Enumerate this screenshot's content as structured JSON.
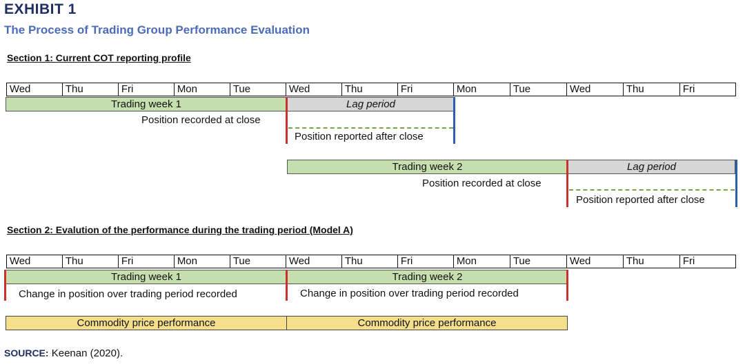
{
  "exhibit": {
    "label": "EXHIBIT 1",
    "title": "The Process of Trading Group Performance Evaluation"
  },
  "days": [
    "Wed",
    "Thu",
    "Fri",
    "Mon",
    "Tue",
    "Wed",
    "Thu",
    "Fri",
    "Mon",
    "Tue",
    "Wed",
    "Thu",
    "Fri"
  ],
  "section1": {
    "heading": "Section 1: Current COT reporting profile",
    "week1": {
      "label": "Trading week 1",
      "lag": "Lag period",
      "recorded": "Position recorded at close",
      "reported": "Position reported after close"
    },
    "week2": {
      "label": "Trading week 2",
      "lag": "Lag period",
      "recorded": "Position recorded at close",
      "reported": "Position reported after close"
    }
  },
  "section2": {
    "heading": "Section 2: Evalution of the performance during the trading period (Model A)",
    "week1": {
      "label": "Trading week 1",
      "change": "Change in position over trading period recorded",
      "price": "Commodity price performance"
    },
    "week2": {
      "label": "Trading week 2",
      "change": "Change in position over trading period recorded",
      "price": "Commodity price performance"
    }
  },
  "source": {
    "label": "SOURCE:",
    "text": "Keenan (2020)."
  },
  "colors": {
    "trading_week": "#c6dfae",
    "lag_period": "#d6d6d6",
    "price_performance": "#f6df8c",
    "recorded_marker": "#c8322d",
    "reported_marker": "#2d5fa8",
    "dashed_line": "#6fa84a"
  }
}
